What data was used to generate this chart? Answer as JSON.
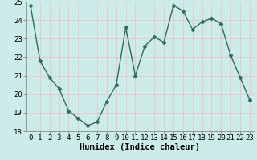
{
  "x": [
    0,
    1,
    2,
    3,
    4,
    5,
    6,
    7,
    8,
    9,
    10,
    11,
    12,
    13,
    14,
    15,
    16,
    17,
    18,
    19,
    20,
    21,
    22,
    23
  ],
  "y": [
    24.8,
    21.8,
    20.9,
    20.3,
    19.1,
    18.7,
    18.3,
    18.5,
    19.6,
    20.5,
    23.6,
    21.0,
    22.6,
    23.1,
    22.8,
    24.8,
    24.5,
    23.5,
    23.9,
    24.1,
    23.8,
    22.1,
    20.9,
    19.7
  ],
  "xlabel": "Humidex (Indice chaleur)",
  "ylim": [
    18,
    25
  ],
  "xlim": [
    -0.5,
    23.5
  ],
  "line_color": "#2e6b5e",
  "marker": "D",
  "markersize": 2.5,
  "linewidth": 1.0,
  "bg_color": "#ccecea",
  "grid_color": "#e8c8cc",
  "tick_label_fontsize": 6.5,
  "xlabel_fontsize": 7.5,
  "yticks": [
    18,
    19,
    20,
    21,
    22,
    23,
    24,
    25
  ],
  "xticks": [
    0,
    1,
    2,
    3,
    4,
    5,
    6,
    7,
    8,
    9,
    10,
    11,
    12,
    13,
    14,
    15,
    16,
    17,
    18,
    19,
    20,
    21,
    22,
    23
  ]
}
